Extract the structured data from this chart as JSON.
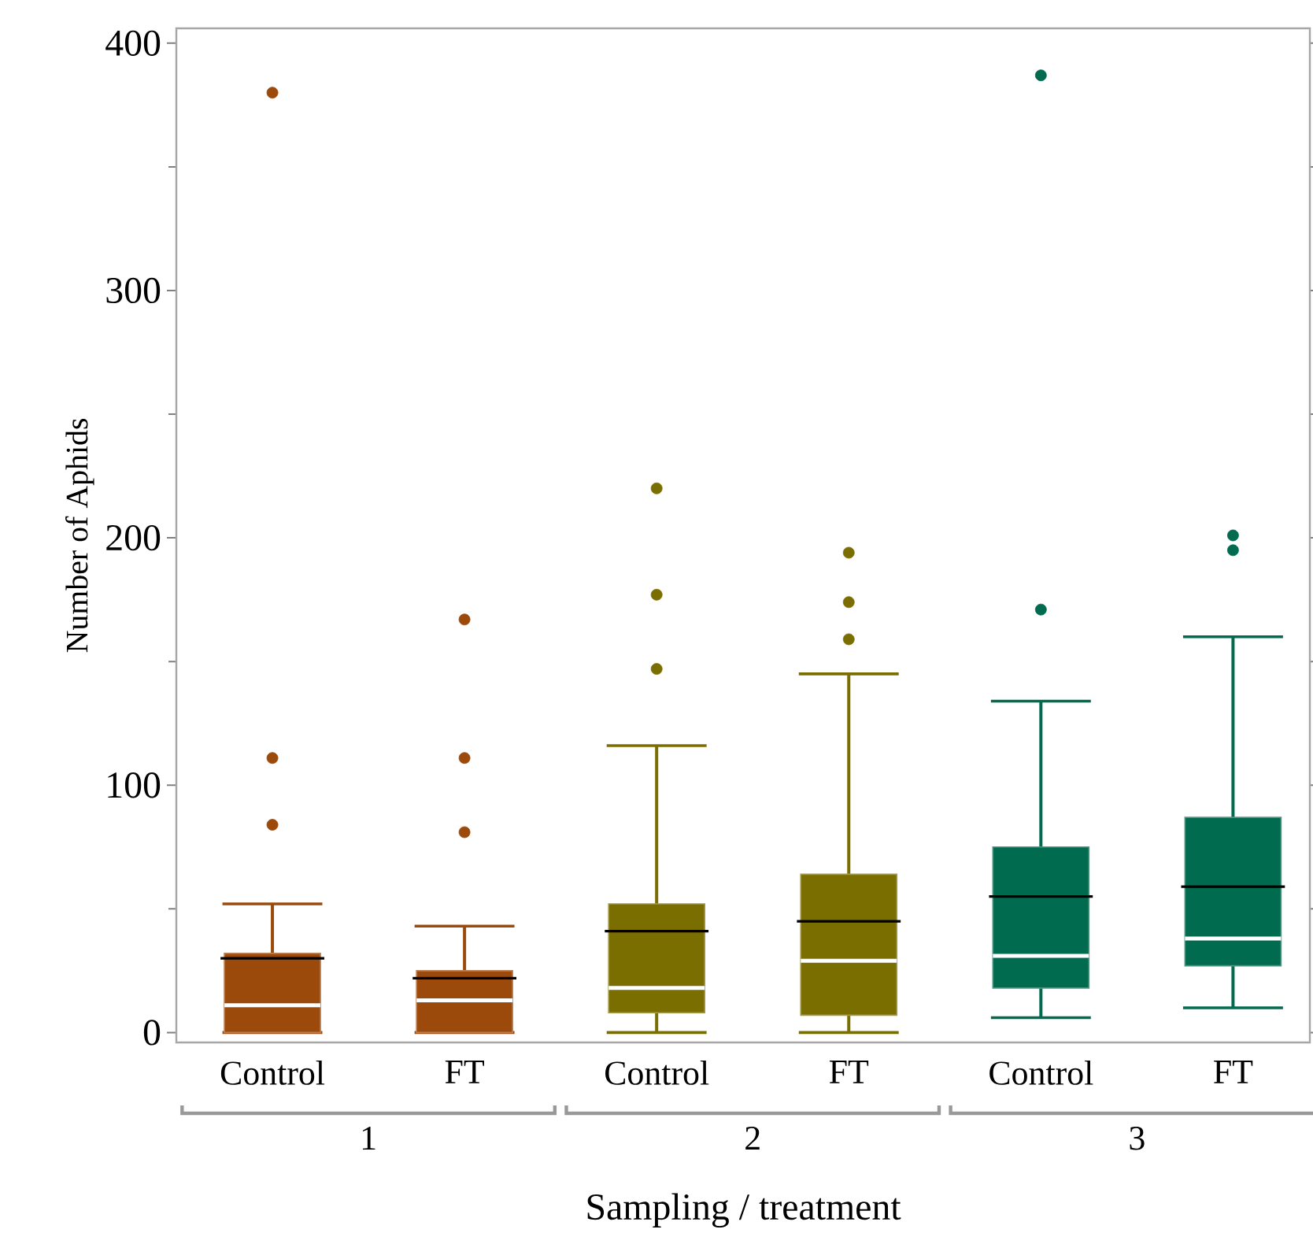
{
  "chart_data": {
    "type": "box",
    "xlabel": "Sampling / treatment",
    "ylabel": "Number of Aphids",
    "categories": [
      "Control",
      "FT",
      "Control",
      "FT",
      "Control",
      "FT"
    ],
    "colors": [
      "#9c4a0c",
      "#9c4a0c",
      "#7b6e00",
      "#7b6e00",
      "#006b4f",
      "#006b4f"
    ],
    "boxes": [
      {
        "low": 0,
        "q1": 0,
        "median": 11,
        "q3": 32,
        "high": 52,
        "mean": 30,
        "outliers": [
          84,
          111,
          380
        ]
      },
      {
        "low": 0,
        "q1": 0,
        "median": 13,
        "q3": 25,
        "high": 43,
        "mean": 22,
        "outliers": [
          81,
          111,
          167
        ]
      },
      {
        "low": 0,
        "q1": 8,
        "median": 18,
        "q3": 52,
        "high": 116,
        "mean": 41,
        "outliers": [
          147,
          177,
          220
        ]
      },
      {
        "low": 0,
        "q1": 7,
        "median": 29,
        "q3": 64,
        "high": 145,
        "mean": 45,
        "outliers": [
          159,
          174,
          194
        ]
      },
      {
        "low": 6,
        "q1": 18,
        "median": 31,
        "q3": 75,
        "high": 134,
        "mean": 55,
        "outliers": [
          171,
          387
        ]
      },
      {
        "low": 10,
        "q1": 27,
        "median": 38,
        "q3": 87,
        "high": 160,
        "mean": 59,
        "outliers": [
          195,
          201
        ]
      }
    ],
    "annotations": [
      "1",
      "2",
      "3"
    ],
    "ylim": [
      -4,
      406
    ],
    "yticks": [
      0,
      100,
      200,
      300,
      400
    ]
  }
}
